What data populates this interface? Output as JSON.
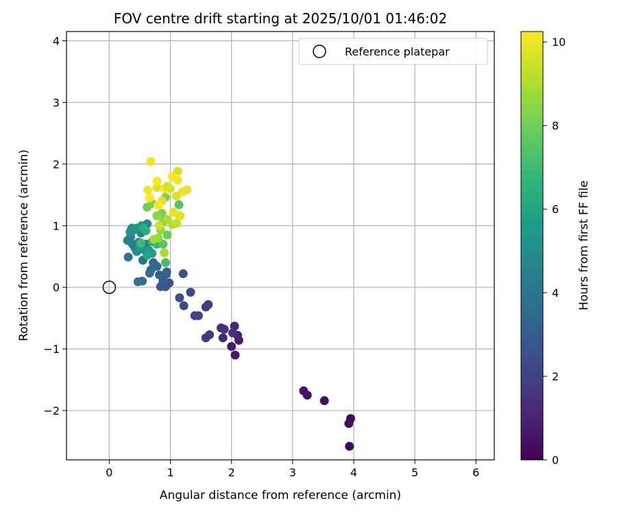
{
  "chart_data": {
    "type": "scatter",
    "title": "FOV centre drift starting at 2025/10/01 01:46:02",
    "xlabel": "Angular distance from reference (arcmin)",
    "ylabel": "Rotation from reference (arcmin)",
    "xlim": [
      -0.7,
      6.3
    ],
    "ylim": [
      -2.8,
      4.15
    ],
    "xticks": [
      0,
      1,
      2,
      3,
      4,
      5,
      6
    ],
    "yticks": [
      -2,
      -1,
      0,
      1,
      2,
      3,
      4
    ],
    "grid": true,
    "legend": {
      "placement": "top-right",
      "entries": [
        "Reference platepar"
      ]
    },
    "reference": {
      "x": 0,
      "y": 0
    },
    "colorbar": {
      "label": "Hours from first FF file",
      "range": [
        0,
        10.25
      ],
      "ticks": [
        0,
        2,
        4,
        6,
        8,
        10
      ],
      "colormap": "viridis",
      "colors": [
        "#440154",
        "#482878",
        "#3e4a89",
        "#31688e",
        "#26828e",
        "#1f9e89",
        "#35b779",
        "#6ece58",
        "#b5de2b",
        "#fde725"
      ]
    },
    "points": [
      {
        "x": 3.93,
        "y": -2.58,
        "h": 0.1
      },
      {
        "x": 3.95,
        "y": -2.13,
        "h": 0.2
      },
      {
        "x": 3.92,
        "y": -2.21,
        "h": 0.3
      },
      {
        "x": 3.52,
        "y": -1.84,
        "h": 0.4
      },
      {
        "x": 3.24,
        "y": -1.75,
        "h": 0.5
      },
      {
        "x": 3.18,
        "y": -1.68,
        "h": 0.6
      },
      {
        "x": 2.06,
        "y": -1.1,
        "h": 0.7
      },
      {
        "x": 2.0,
        "y": -0.96,
        "h": 0.8
      },
      {
        "x": 2.12,
        "y": -0.86,
        "h": 0.9
      },
      {
        "x": 2.1,
        "y": -0.78,
        "h": 1.0
      },
      {
        "x": 2.05,
        "y": -0.63,
        "h": 1.1
      },
      {
        "x": 1.86,
        "y": -0.82,
        "h": 1.2
      },
      {
        "x": 1.83,
        "y": -0.66,
        "h": 1.3
      },
      {
        "x": 1.88,
        "y": -0.68,
        "h": 1.4
      },
      {
        "x": 2.02,
        "y": -0.74,
        "h": 1.5
      },
      {
        "x": 1.58,
        "y": -0.82,
        "h": 1.6
      },
      {
        "x": 1.64,
        "y": -0.77,
        "h": 1.7
      },
      {
        "x": 1.58,
        "y": -0.32,
        "h": 1.8
      },
      {
        "x": 1.62,
        "y": -0.28,
        "h": 1.9
      },
      {
        "x": 1.4,
        "y": -0.46,
        "h": 2.0
      },
      {
        "x": 1.46,
        "y": -0.46,
        "h": 2.1
      },
      {
        "x": 1.33,
        "y": -0.08,
        "h": 2.2
      },
      {
        "x": 1.22,
        "y": -0.3,
        "h": 2.3
      },
      {
        "x": 1.15,
        "y": -0.17,
        "h": 2.4
      },
      {
        "x": 1.21,
        "y": 0.22,
        "h": 2.5
      },
      {
        "x": 0.98,
        "y": 0.07,
        "h": 2.6
      },
      {
        "x": 0.92,
        "y": 0.01,
        "h": 2.7
      },
      {
        "x": 0.84,
        "y": 0.01,
        "h": 2.8
      },
      {
        "x": 0.93,
        "y": 0.21,
        "h": 2.9
      },
      {
        "x": 0.88,
        "y": 0.1,
        "h": 3.0
      },
      {
        "x": 0.82,
        "y": 0.2,
        "h": 3.1
      },
      {
        "x": 0.94,
        "y": 0.25,
        "h": 3.2
      },
      {
        "x": 0.78,
        "y": 0.34,
        "h": 3.3
      },
      {
        "x": 0.72,
        "y": 0.4,
        "h": 3.4
      },
      {
        "x": 0.68,
        "y": 0.28,
        "h": 3.5
      },
      {
        "x": 0.66,
        "y": 0.23,
        "h": 3.6
      },
      {
        "x": 0.54,
        "y": 0.1,
        "h": 3.7
      },
      {
        "x": 0.47,
        "y": 0.09,
        "h": 3.8
      },
      {
        "x": 0.55,
        "y": 0.44,
        "h": 3.9
      },
      {
        "x": 0.31,
        "y": 0.49,
        "h": 4.0
      },
      {
        "x": 0.6,
        "y": 0.7,
        "h": 4.1
      },
      {
        "x": 0.42,
        "y": 0.64,
        "h": 4.2
      },
      {
        "x": 0.38,
        "y": 0.7,
        "h": 4.3
      },
      {
        "x": 0.3,
        "y": 0.76,
        "h": 4.4
      },
      {
        "x": 0.35,
        "y": 0.82,
        "h": 4.5
      },
      {
        "x": 0.48,
        "y": 0.73,
        "h": 4.6
      },
      {
        "x": 0.62,
        "y": 1.03,
        "h": 4.7
      },
      {
        "x": 0.52,
        "y": 0.88,
        "h": 4.8
      },
      {
        "x": 0.45,
        "y": 0.58,
        "h": 4.9
      },
      {
        "x": 0.4,
        "y": 0.93,
        "h": 5.0
      },
      {
        "x": 0.58,
        "y": 0.6,
        "h": 5.1
      },
      {
        "x": 0.34,
        "y": 0.9,
        "h": 5.2
      },
      {
        "x": 0.37,
        "y": 0.96,
        "h": 5.3
      },
      {
        "x": 0.45,
        "y": 0.96,
        "h": 5.4
      },
      {
        "x": 0.53,
        "y": 1.0,
        "h": 5.5
      },
      {
        "x": 0.5,
        "y": 0.66,
        "h": 5.6
      },
      {
        "x": 0.65,
        "y": 0.6,
        "h": 5.7
      },
      {
        "x": 0.7,
        "y": 0.55,
        "h": 5.8
      },
      {
        "x": 0.62,
        "y": 0.52,
        "h": 6.0
      },
      {
        "x": 0.56,
        "y": 0.96,
        "h": 6.2
      },
      {
        "x": 0.6,
        "y": 0.92,
        "h": 6.4
      },
      {
        "x": 0.7,
        "y": 0.74,
        "h": 6.6
      },
      {
        "x": 0.78,
        "y": 0.7,
        "h": 6.8
      },
      {
        "x": 0.52,
        "y": 0.72,
        "h": 7.0
      },
      {
        "x": 0.92,
        "y": 0.4,
        "h": 7.2
      },
      {
        "x": 1.14,
        "y": 1.34,
        "h": 7.4
      },
      {
        "x": 0.88,
        "y": 0.7,
        "h": 7.6
      },
      {
        "x": 0.95,
        "y": 0.85,
        "h": 7.8
      },
      {
        "x": 0.62,
        "y": 1.3,
        "h": 8.0
      },
      {
        "x": 0.7,
        "y": 1.36,
        "h": 8.1
      },
      {
        "x": 0.86,
        "y": 1.2,
        "h": 8.2
      },
      {
        "x": 0.92,
        "y": 1.46,
        "h": 8.3
      },
      {
        "x": 0.78,
        "y": 1.16,
        "h": 8.4
      },
      {
        "x": 0.88,
        "y": 1.06,
        "h": 8.5
      },
      {
        "x": 0.84,
        "y": 0.93,
        "h": 8.6
      },
      {
        "x": 0.8,
        "y": 0.8,
        "h": 8.7
      },
      {
        "x": 0.73,
        "y": 0.78,
        "h": 8.8
      },
      {
        "x": 0.9,
        "y": 0.56,
        "h": 8.9
      },
      {
        "x": 0.95,
        "y": 1.1,
        "h": 9.0
      },
      {
        "x": 1.03,
        "y": 1.02,
        "h": 9.1
      },
      {
        "x": 1.15,
        "y": 1.16,
        "h": 9.2
      },
      {
        "x": 1.1,
        "y": 1.04,
        "h": 9.3
      },
      {
        "x": 0.82,
        "y": 1.0,
        "h": 9.4
      },
      {
        "x": 1.12,
        "y": 1.88,
        "h": 9.5
      },
      {
        "x": 1.0,
        "y": 1.6,
        "h": 9.6
      },
      {
        "x": 0.78,
        "y": 1.62,
        "h": 9.7
      },
      {
        "x": 0.86,
        "y": 1.4,
        "h": 9.8
      },
      {
        "x": 1.05,
        "y": 1.22,
        "h": 9.9
      },
      {
        "x": 1.08,
        "y": 1.78,
        "h": 10.0
      },
      {
        "x": 0.68,
        "y": 2.04,
        "h": 10.1
      },
      {
        "x": 0.63,
        "y": 1.58,
        "h": 10.15
      },
      {
        "x": 0.66,
        "y": 1.45,
        "h": 10.2
      },
      {
        "x": 0.78,
        "y": 1.72,
        "h": 10.2
      },
      {
        "x": 0.8,
        "y": 1.33,
        "h": 10.25
      },
      {
        "x": 0.9,
        "y": 1.6,
        "h": 10.2
      },
      {
        "x": 1.03,
        "y": 1.8,
        "h": 10.2
      },
      {
        "x": 1.12,
        "y": 1.74,
        "h": 10.1
      },
      {
        "x": 1.2,
        "y": 1.55,
        "h": 10.0
      },
      {
        "x": 1.27,
        "y": 1.58,
        "h": 9.9
      },
      {
        "x": 1.16,
        "y": 1.16,
        "h": 9.8
      },
      {
        "x": 1.1,
        "y": 1.48,
        "h": 9.7
      },
      {
        "x": 0.95,
        "y": 1.64,
        "h": 9.6
      }
    ]
  }
}
